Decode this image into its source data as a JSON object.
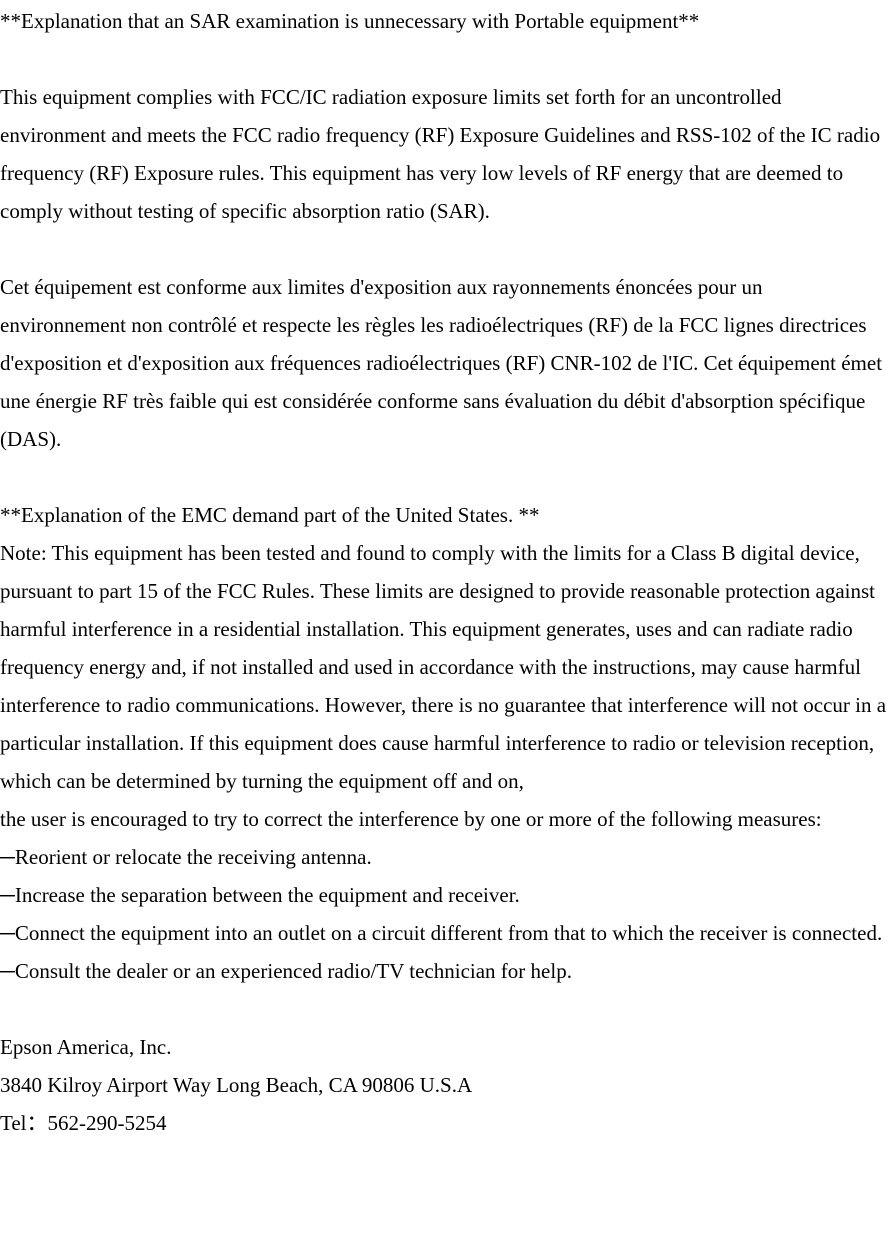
{
  "section1": {
    "heading": "**Explanation that an SAR examination is unnecessary with Portable equipment**",
    "para_en": "This equipment complies with FCC/IC radiation exposure limits set forth for an uncontrolled environment and meets the FCC radio frequency (RF) Exposure Guidelines and RSS-102 of the IC radio frequency (RF) Exposure rules. This equipment has very low levels of RF energy that are deemed to comply without testing of specific absorption ratio (SAR).",
    "para_fr": "Cet équipement est conforme aux limites d'exposition aux rayonnements énoncées pour un environnement non contrôlé et respecte les règles les radioélectriques (RF) de la FCC lignes directrices d'exposition et d'exposition aux fréquences radioélectriques (RF) CNR-102 de l'IC. Cet équipement émet une énergie RF très faible qui est considérée conforme sans évaluation du débit d'absorption spécifique (DAS)."
  },
  "section2": {
    "heading": "**Explanation of the EMC demand part of the United States. **",
    "para_a": "Note: This equipment has been tested and found to comply with the limits for a Class B digital device, pursuant to part 15 of the FCC Rules. These limits are designed to provide reasonable protection against harmful interference in a residential installation. This equipment generates, uses and can radiate radio frequency energy and, if not installed and used in accordance with the instructions, may cause harmful interference to radio communications. However, there is no guarantee that interference will not occur in a particular installation. If this equipment does cause harmful interference to radio or television reception, which can be determined by turning the equipment off and on,",
    "para_b": "the user is encouraged to try to correct the interference by one or more of the following measures:",
    "m1": "─Reorient or relocate the receiving antenna.",
    "m2": "─Increase the separation between the equipment and receiver.",
    "m3": "─Connect the equipment into an outlet on a circuit different from that to which the receiver is connected.",
    "m4": "─Consult the dealer or an experienced radio/TV technician for help."
  },
  "footer": {
    "company": "Epson America, Inc.",
    "address": "3840 Kilroy Airport Way Long Beach, CA 90806 U.S.A",
    "tel": "Tel：562-290-5254"
  }
}
